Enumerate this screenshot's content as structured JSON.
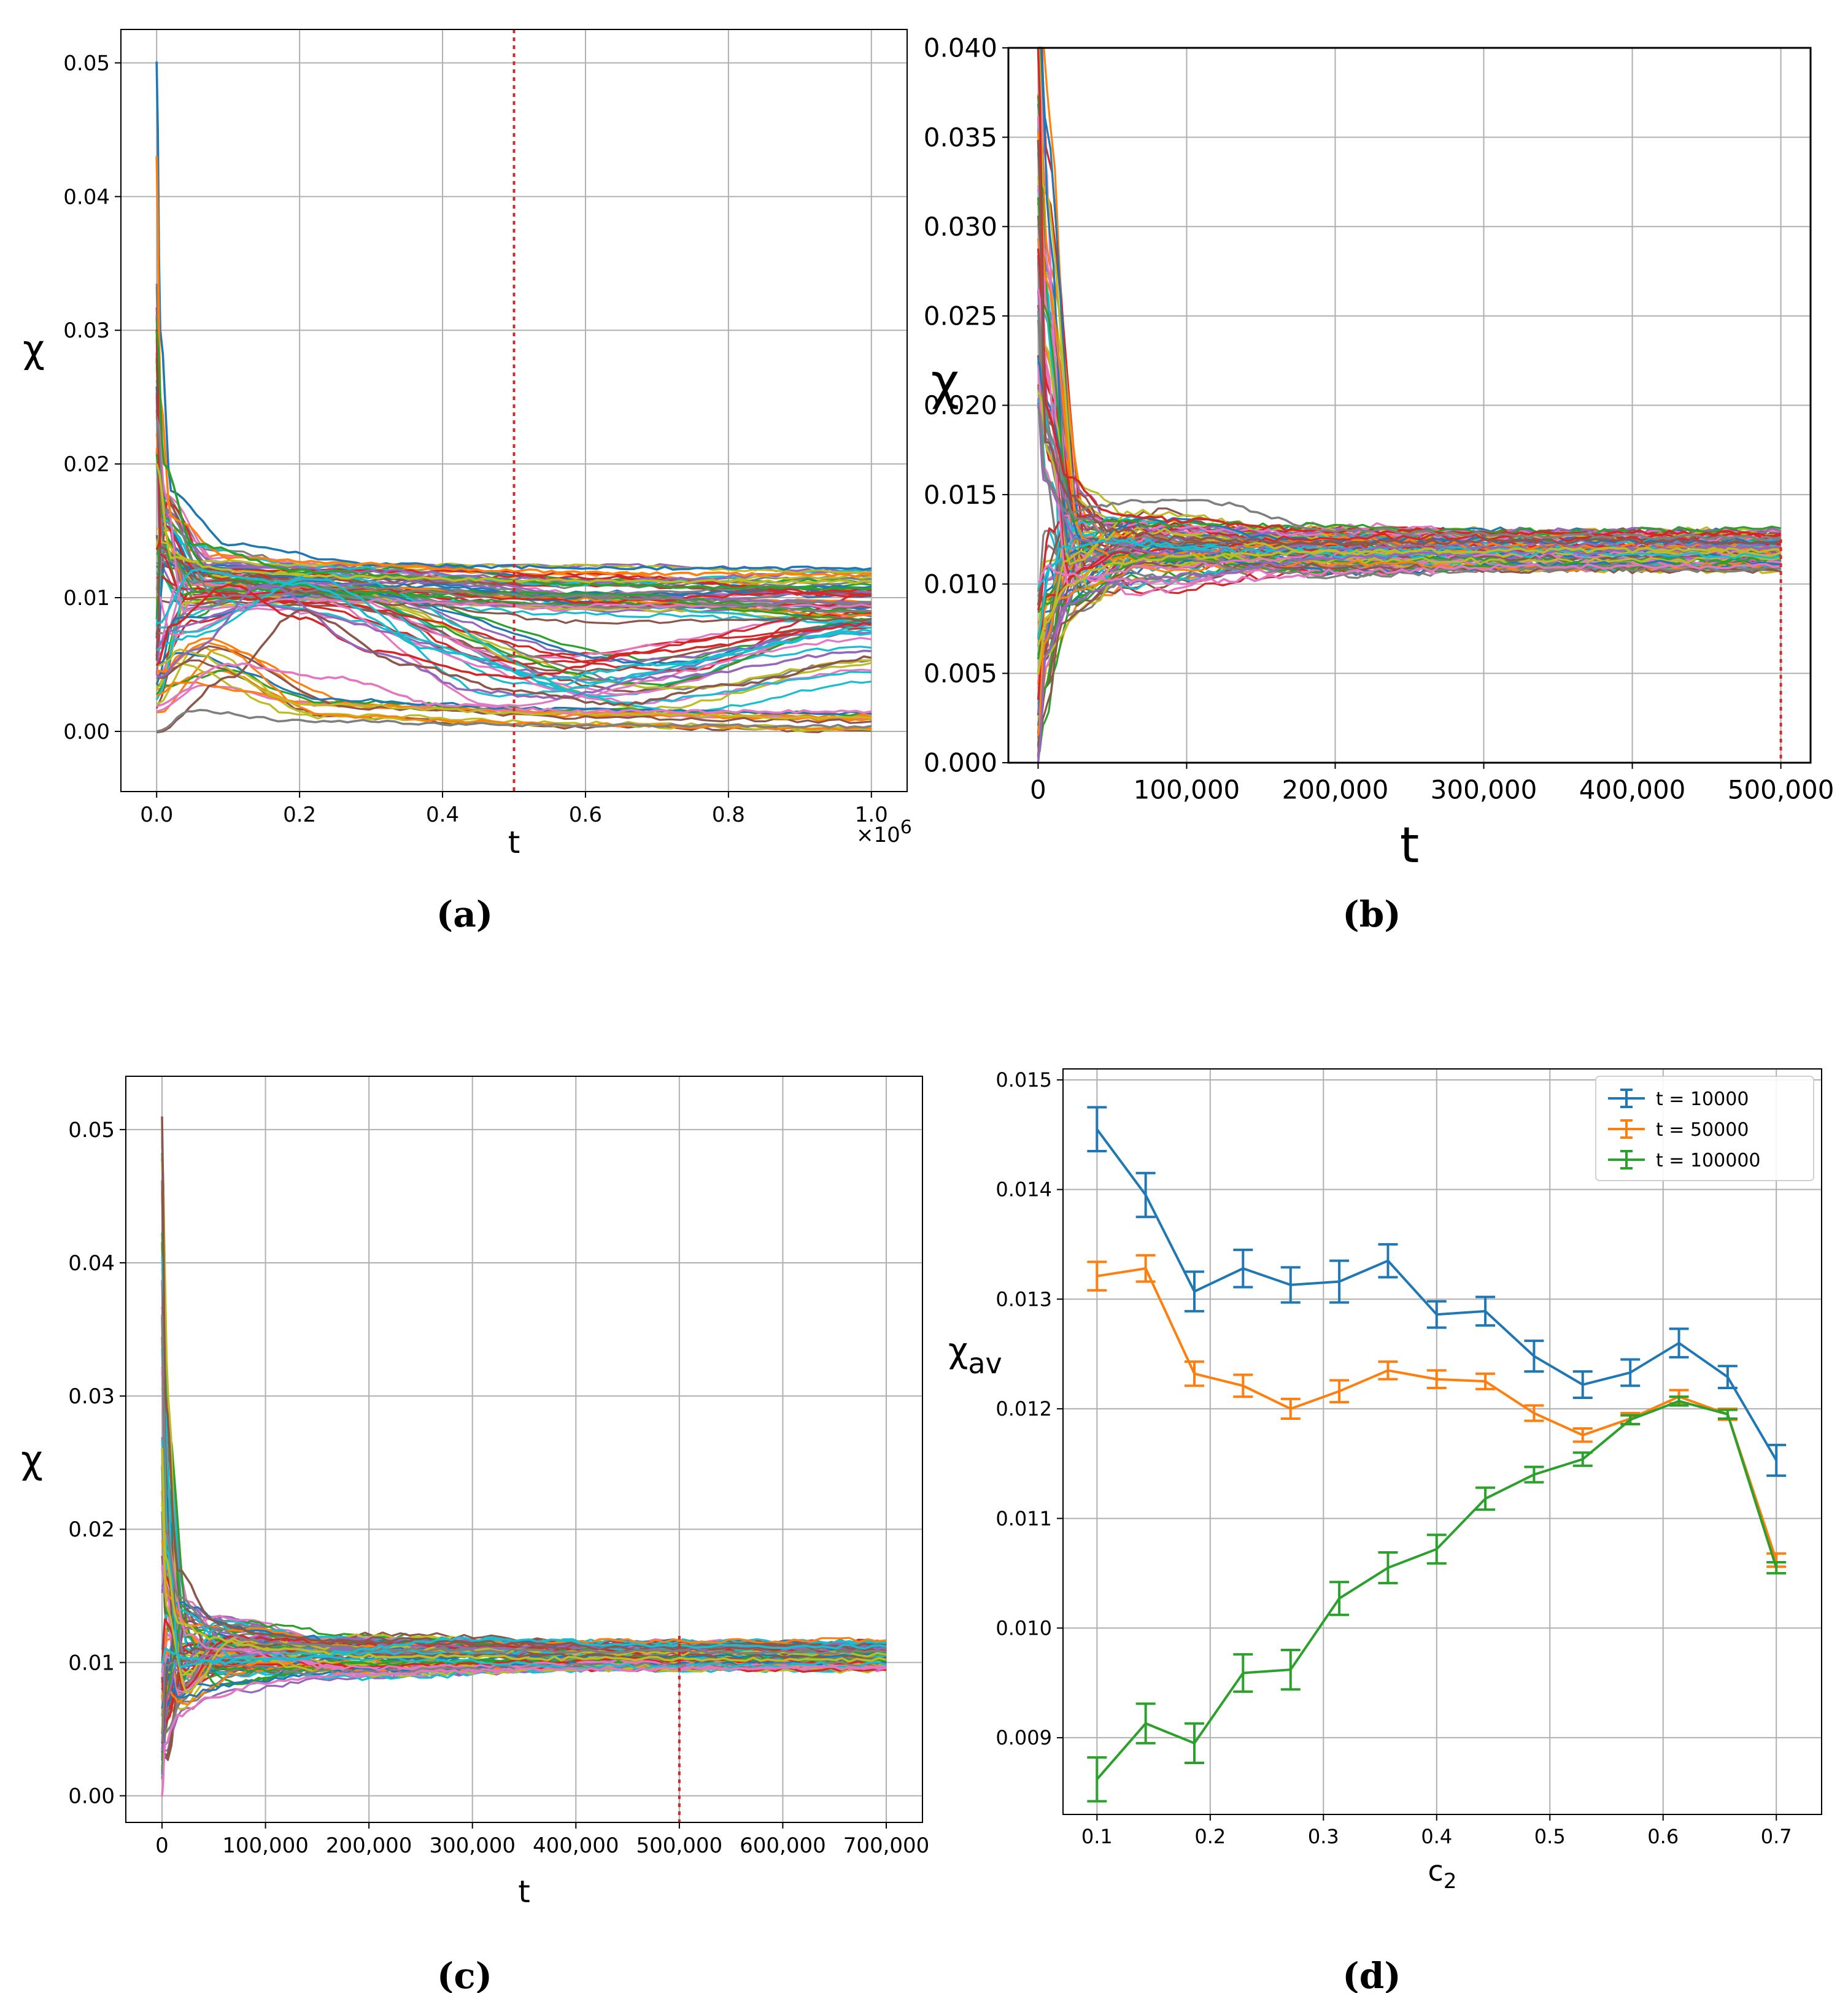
{
  "chart_data": [
    {
      "panel": "(a)",
      "type": "line",
      "xlabel": "t",
      "ylabel": "χ",
      "x_offset_text": "×10^6",
      "xlim": [
        -0.05,
        1.05
      ],
      "ylim": [
        -0.0045,
        0.0525
      ],
      "xticks": [
        0.0,
        0.2,
        0.4,
        0.6,
        0.8,
        1.0
      ],
      "xtick_labels": [
        "0.0",
        "0.2",
        "0.4",
        "0.6",
        "0.8",
        "1.0"
      ],
      "yticks": [
        0.0,
        0.01,
        0.02,
        0.03,
        0.04,
        0.05
      ],
      "ytick_labels": [
        "0.00",
        "0.01",
        "0.02",
        "0.03",
        "0.04",
        "0.05"
      ],
      "vline": {
        "x": 0.5,
        "color": "#d62728",
        "style": "dotted"
      },
      "grid": true,
      "series_description": "~100 random trajectories; initial spike up to 0.05 near t=0, then relaxation toward 0.010-0.0125 band, some decaying toward 0.000-0.005",
      "series": [
        {
          "name": "s1",
          "x": [
            0,
            0.005,
            0.02,
            0.1,
            0.3,
            0.5,
            0.7,
            1.0
          ],
          "values": [
            0.05,
            0.03,
            0.018,
            0.014,
            0.0125,
            0.0123,
            0.0122,
            0.0122
          ]
        },
        {
          "name": "s2",
          "x": [
            0,
            0.005,
            0.02,
            0.1,
            0.3,
            0.5,
            0.7,
            1.0
          ],
          "values": [
            0.043,
            0.025,
            0.016,
            0.013,
            0.0125,
            0.012,
            0.0118,
            0.0117
          ]
        },
        {
          "name": "s3",
          "x": [
            0,
            0.01,
            0.05,
            0.2,
            0.4,
            0.6,
            0.8,
            1.0
          ],
          "values": [
            0.03,
            0.02,
            0.014,
            0.012,
            0.0115,
            0.011,
            0.0108,
            0.0107
          ]
        },
        {
          "name": "s4",
          "x": [
            0,
            0.02,
            0.1,
            0.2,
            0.3,
            0.5,
            0.7,
            1.0
          ],
          "values": [
            0.005,
            0.008,
            0.011,
            0.0085,
            0.006,
            0.004,
            0.006,
            0.008
          ]
        },
        {
          "name": "s5",
          "x": [
            0,
            0.05,
            0.15,
            0.3,
            0.45,
            0.55,
            0.7,
            1.0
          ],
          "values": [
            0.004,
            0.006,
            0.011,
            0.006,
            0.003,
            0.0025,
            0.004,
            0.006
          ]
        },
        {
          "name": "s6",
          "x": [
            0,
            0.1,
            0.2,
            0.35,
            0.5,
            0.65,
            0.8,
            1.0
          ],
          "values": [
            0.0,
            0.004,
            0.009,
            0.005,
            0.003,
            0.002,
            0.0035,
            0.0055
          ]
        },
        {
          "name": "s7",
          "x": [
            0,
            0.1,
            0.25,
            0.4,
            0.6,
            0.8,
            1.0
          ],
          "values": [
            0.002,
            0.005,
            0.004,
            0.002,
            0.0015,
            0.0015,
            0.0015
          ]
        },
        {
          "name": "s8",
          "x": [
            0,
            0.05,
            0.2,
            0.5,
            1.0
          ],
          "values": [
            0.0,
            0.0015,
            0.0008,
            0.0005,
            0.0004
          ]
        },
        {
          "name": "s9",
          "x": [
            0,
            0.02,
            0.1,
            0.3,
            0.5,
            0.7,
            1.0
          ],
          "values": [
            0.02,
            0.013,
            0.012,
            0.0115,
            0.0113,
            0.0112,
            0.0112
          ]
        },
        {
          "name": "s10",
          "x": [
            0,
            0.05,
            0.2,
            0.4,
            0.55,
            0.7,
            1.0
          ],
          "values": [
            0.008,
            0.012,
            0.011,
            0.006,
            0.004,
            0.005,
            0.0075
          ]
        }
      ],
      "caption": "(a)"
    },
    {
      "panel": "(b)",
      "type": "line",
      "xlabel": "t",
      "ylabel": "χ",
      "xlim": [
        -20000,
        520000
      ],
      "ylim": [
        0.0,
        0.04
      ],
      "xticks": [
        0,
        100000,
        200000,
        300000,
        400000,
        500000
      ],
      "xtick_labels": [
        "0",
        "100,000",
        "200,000",
        "300,000",
        "400,000",
        "500,000"
      ],
      "yticks": [
        0.0,
        0.005,
        0.01,
        0.015,
        0.02,
        0.025,
        0.03,
        0.035,
        0.04
      ],
      "ytick_labels": [
        "0.000",
        "0.005",
        "0.010",
        "0.015",
        "0.020",
        "0.025",
        "0.030",
        "0.035",
        "0.040"
      ],
      "vline": {
        "x": 500000,
        "color": "#d62728",
        "style": "dotted"
      },
      "grid": true,
      "series_description": "~100 trajectories starting near 0.040 at t≈0, converging to the 0.011-0.013 band by t≈200,000",
      "series": [
        {
          "name": "s1",
          "x": [
            0,
            5000,
            20000,
            50000,
            100000,
            200000,
            350000,
            500000
          ],
          "values": [
            0.04,
            0.02,
            0.016,
            0.014,
            0.0135,
            0.013,
            0.0129,
            0.0128
          ]
        },
        {
          "name": "s2",
          "x": [
            0,
            5000,
            20000,
            50000,
            100000,
            200000,
            350000,
            500000
          ],
          "values": [
            0.0,
            0.006,
            0.009,
            0.01,
            0.0105,
            0.0115,
            0.0118,
            0.012
          ]
        },
        {
          "name": "s3",
          "x": [
            0,
            5000,
            20000,
            50000,
            100000,
            200000,
            350000,
            500000
          ],
          "values": [
            0.035,
            0.018,
            0.015,
            0.013,
            0.0125,
            0.0123,
            0.0124,
            0.0124
          ]
        },
        {
          "name": "s4",
          "x": [
            0,
            5000,
            20000,
            50000,
            100000,
            150000,
            200000,
            350000,
            500000
          ],
          "values": [
            0.01,
            0.011,
            0.0105,
            0.0102,
            0.0101,
            0.0103,
            0.0107,
            0.011,
            0.011
          ]
        },
        {
          "name": "s5",
          "x": [
            0,
            5000,
            20000,
            50000,
            100000,
            200000,
            350000,
            500000
          ],
          "values": [
            0.02,
            0.016,
            0.014,
            0.0145,
            0.0148,
            0.013,
            0.0127,
            0.0126
          ]
        },
        {
          "name": "s6",
          "x": [
            0,
            5000,
            20000,
            50000,
            100000,
            200000,
            350000,
            500000
          ],
          "values": [
            0.005,
            0.008,
            0.01,
            0.0112,
            0.0115,
            0.0118,
            0.0119,
            0.0119
          ]
        }
      ],
      "caption": "(b)"
    },
    {
      "panel": "(c)",
      "type": "line",
      "xlabel": "t",
      "ylabel": "χ",
      "xlim": [
        -35000,
        735000
      ],
      "ylim": [
        -0.002,
        0.054
      ],
      "xticks": [
        0,
        100000,
        200000,
        300000,
        400000,
        500000,
        600000,
        700000
      ],
      "xtick_labels": [
        "0",
        "100,000",
        "200,000",
        "300,000",
        "400,000",
        "500,000",
        "600,000",
        "700,000"
      ],
      "yticks": [
        0.0,
        0.01,
        0.02,
        0.03,
        0.04,
        0.05
      ],
      "ytick_labels": [
        "0.00",
        "0.01",
        "0.02",
        "0.03",
        "0.04",
        "0.05"
      ],
      "vline": {
        "x": 500000,
        "color": "#d62728",
        "style": "dotted"
      },
      "grid": true,
      "series_description": "~100 trajectories spiking to ~0.051 at t≈0, converging to the 0.0095-0.0115 band",
      "series": [
        {
          "name": "s1",
          "x": [
            0,
            3000,
            15000,
            50000,
            100000,
            200000,
            400000,
            700000
          ],
          "values": [
            0.051,
            0.03,
            0.017,
            0.013,
            0.012,
            0.0115,
            0.0113,
            0.0113
          ]
        },
        {
          "name": "s2",
          "x": [
            0,
            3000,
            15000,
            50000,
            100000,
            200000,
            400000,
            700000
          ],
          "values": [
            0.0,
            0.004,
            0.006,
            0.0075,
            0.0085,
            0.0092,
            0.0095,
            0.0096
          ]
        },
        {
          "name": "s3",
          "x": [
            0,
            3000,
            15000,
            50000,
            100000,
            200000,
            400000,
            700000
          ],
          "values": [
            0.036,
            0.02,
            0.015,
            0.0125,
            0.0115,
            0.011,
            0.0108,
            0.0108
          ]
        },
        {
          "name": "s4",
          "x": [
            0,
            3000,
            15000,
            50000,
            100000,
            200000,
            400000,
            700000
          ],
          "values": [
            0.026,
            0.018,
            0.013,
            0.0118,
            0.011,
            0.0105,
            0.0103,
            0.0102
          ]
        },
        {
          "name": "s5",
          "x": [
            0,
            3000,
            15000,
            50000,
            100000,
            300000,
            500000,
            700000
          ],
          "values": [
            0.01,
            0.011,
            0.0105,
            0.01,
            0.0102,
            0.0118,
            0.0112,
            0.0112
          ]
        }
      ],
      "caption": "(c)"
    },
    {
      "panel": "(d)",
      "type": "line",
      "xlabel": "c",
      "xlabel_sub": "2",
      "ylabel": "χ",
      "ylabel_sub": "av",
      "xlim": [
        0.07,
        0.74
      ],
      "ylim": [
        0.0083,
        0.0151
      ],
      "xticks": [
        0.1,
        0.2,
        0.3,
        0.4,
        0.5,
        0.6,
        0.7
      ],
      "xtick_labels": [
        "0.1",
        "0.2",
        "0.3",
        "0.4",
        "0.5",
        "0.6",
        "0.7"
      ],
      "yticks": [
        0.009,
        0.01,
        0.011,
        0.012,
        0.013,
        0.014,
        0.015
      ],
      "ytick_labels": [
        "0.009",
        "0.010",
        "0.011",
        "0.012",
        "0.013",
        "0.014",
        "0.015"
      ],
      "grid": true,
      "legend_position": "top-right",
      "x": [
        0.1,
        0.143,
        0.186,
        0.229,
        0.271,
        0.314,
        0.357,
        0.4,
        0.443,
        0.486,
        0.529,
        0.571,
        0.614,
        0.657,
        0.7
      ],
      "series": [
        {
          "name": "t = 10000",
          "color": "#1f77b4",
          "values": [
            0.01455,
            0.01395,
            0.01307,
            0.01328,
            0.01313,
            0.01316,
            0.01335,
            0.01286,
            0.01289,
            0.01248,
            0.01222,
            0.01233,
            0.0126,
            0.01229,
            0.01153
          ],
          "errors": [
            0.0002,
            0.0002,
            0.00018,
            0.00017,
            0.00016,
            0.00019,
            0.00015,
            0.00012,
            0.00013,
            0.00014,
            0.00012,
            0.00012,
            0.00013,
            0.0001,
            0.00014
          ]
        },
        {
          "name": "t = 50000",
          "color": "#ff7f0e",
          "values": [
            0.01321,
            0.01328,
            0.01232,
            0.01221,
            0.012,
            0.01216,
            0.01235,
            0.01227,
            0.01225,
            0.01196,
            0.01176,
            0.01191,
            0.01211,
            0.01195,
            0.01062
          ],
          "errors": [
            0.00013,
            0.00012,
            0.00011,
            0.0001,
            9e-05,
            0.0001,
            8e-05,
            8e-05,
            7e-05,
            7e-05,
            6e-05,
            5e-05,
            6e-05,
            5e-05,
            6e-05
          ]
        },
        {
          "name": "t = 100000",
          "color": "#2ca02c",
          "values": [
            0.00862,
            0.00913,
            0.00895,
            0.00959,
            0.00962,
            0.01027,
            0.01055,
            0.01072,
            0.01118,
            0.0114,
            0.01154,
            0.0119,
            0.01207,
            0.01195,
            0.01055
          ],
          "errors": [
            0.0002,
            0.00018,
            0.00018,
            0.00017,
            0.00018,
            0.00015,
            0.00014,
            0.00013,
            0.0001,
            7e-05,
            6e-05,
            4e-05,
            4e-05,
            4e-05,
            5e-05
          ]
        }
      ],
      "caption": "(d)"
    }
  ]
}
